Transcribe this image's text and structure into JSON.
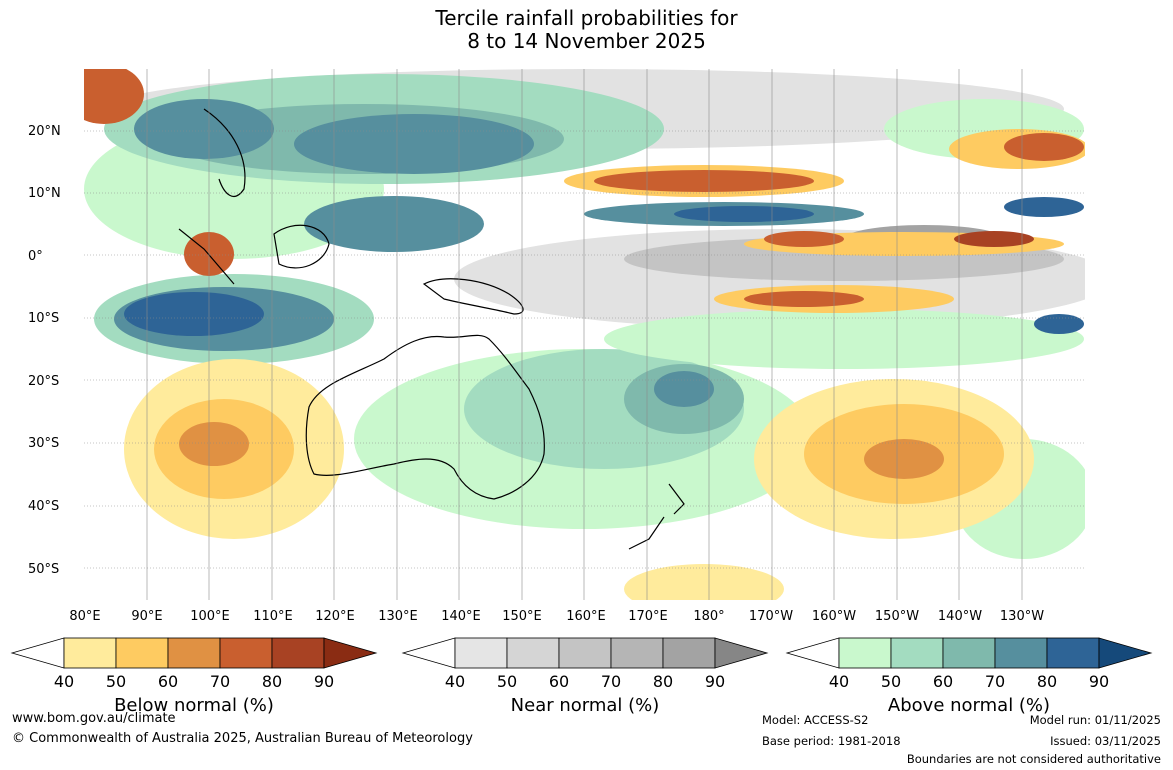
{
  "title": {
    "line1": "Tercile rainfall probabilities for",
    "line2": "8 to 14 November 2025"
  },
  "map": {
    "latitude_labels": [
      "20°N",
      "10°N",
      "0°",
      "10°S",
      "20°S",
      "30°S",
      "40°S",
      "50°S"
    ],
    "longitude_labels": [
      "80°E",
      "90°E",
      "100°E",
      "110°E",
      "120°E",
      "130°E",
      "140°E",
      "150°E",
      "160°E",
      "170°E",
      "180°",
      "170°W",
      "160°W",
      "150°W",
      "140°W",
      "130°W"
    ]
  },
  "legends": [
    {
      "label": "Below normal (%)",
      "ticks": [
        "40",
        "50",
        "60",
        "70",
        "80",
        "90"
      ],
      "colors": [
        "#ffeb9c",
        "#fecb61",
        "#e09143",
        "#c95f2f",
        "#a84223",
        "#8a2c13"
      ]
    },
    {
      "label": "Near normal (%)",
      "ticks": [
        "40",
        "50",
        "60",
        "70",
        "80",
        "90"
      ],
      "colors": [
        "#e5e5e5",
        "#d5d5d5",
        "#c4c4c4",
        "#b5b5b5",
        "#a3a3a3",
        "#868686"
      ]
    },
    {
      "label": "Above normal (%)",
      "ticks": [
        "40",
        "50",
        "60",
        "70",
        "80",
        "90"
      ],
      "colors": [
        "#c9f8cd",
        "#a3dcc0",
        "#7fb9ac",
        "#568f9e",
        "#2e6496",
        "#15497a"
      ]
    }
  ],
  "footer": {
    "website": "www.bom.gov.au/climate",
    "copyright": "© Commonwealth of Australia 2025, Australian Bureau of Meteorology",
    "model": "Model: ACCESS-S2",
    "base_period": "Base period: 1981-2018",
    "model_run": "Model run: 01/11/2025",
    "issued": "Issued: 03/11/2025",
    "boundaries": "Boundaries are not considered authoritative"
  }
}
